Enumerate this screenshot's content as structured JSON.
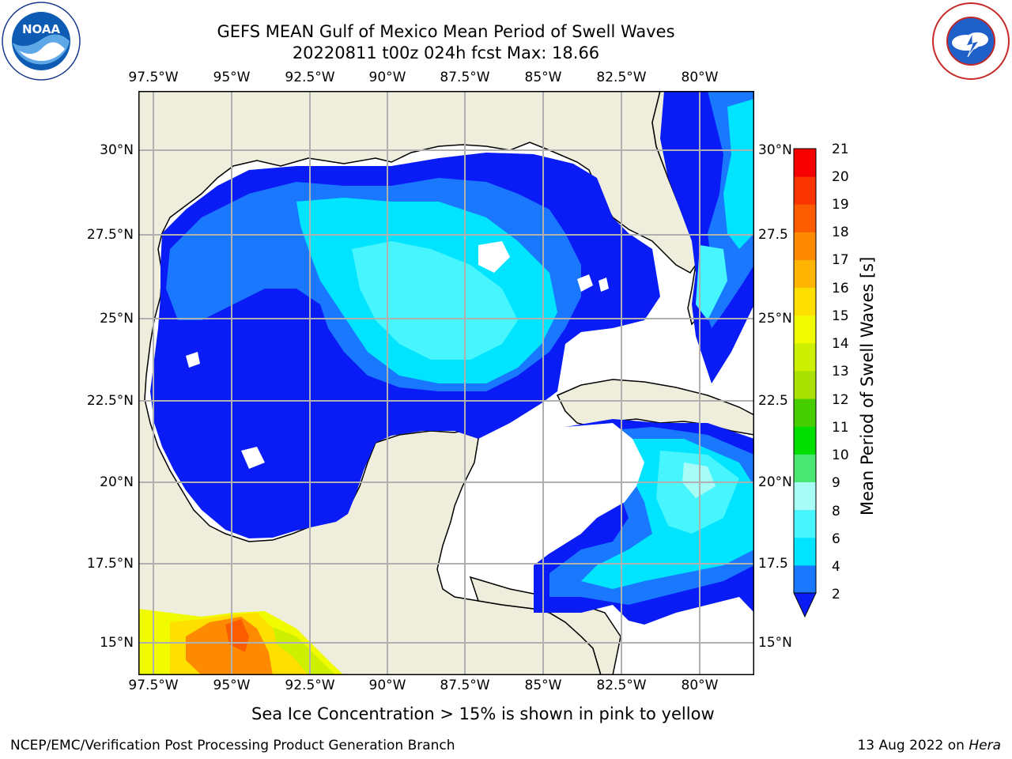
{
  "title": {
    "line1": "GEFS MEAN Gulf of Mexico Mean Period of Swell Waves",
    "line2": "20220811 t00z 024h fcst   Max: 18.66"
  },
  "logos": {
    "left": "NOAA",
    "left_ring_text": "NATIONAL OCEANIC AND ATMOSPHERIC ADMINISTRATION · U.S. DEPARTMENT OF COMMERCE",
    "right_ring_text": "NATIONAL WEATHER SERVICE"
  },
  "map": {
    "lon_ticks": [
      "97.5°W",
      "95°W",
      "92.5°W",
      "90°W",
      "87.5°W",
      "85°W",
      "82.5°W",
      "80°W"
    ],
    "lat_ticks_left": [
      "30°N",
      "27.5°N",
      "25°N",
      "22.5°N",
      "20°N",
      "17.5°N",
      "15°N"
    ],
    "lat_ticks_right": [
      "30°N",
      "27.5",
      "25°N",
      "22.5",
      "20°N",
      "17.5",
      "15°N"
    ],
    "grid": true,
    "colors": {
      "land": "#efeddc",
      "ocean_nodata": "#ffffff",
      "grid": "#b0b0b0",
      "coast": "#000000"
    }
  },
  "colorbar": {
    "label": "Mean Period of Swell Waves [s]",
    "ticks": [
      "2",
      "4",
      "6",
      "8",
      "9",
      "10",
      "11",
      "12",
      "13",
      "14",
      "15",
      "16",
      "17",
      "18",
      "19",
      "20",
      "21"
    ],
    "colors": [
      "#0a1cf5",
      "#1a78ff",
      "#00e4ff",
      "#47f5ff",
      "#a8fcf6",
      "#4ae873",
      "#00de00",
      "#47ce00",
      "#a9e000",
      "#ccf000",
      "#f1fb00",
      "#fee000",
      "#feb400",
      "#fd8a00",
      "#fc5c00",
      "#fc3400",
      "#f70000"
    ],
    "extend": "min"
  },
  "note": "Sea Ice Concentration > 15% is shown in pink to yellow",
  "footer": {
    "left": "NCEP/EMC/Verification Post Processing Product Generation Branch",
    "date": "13 Aug 2022 on",
    "machine": "Hera"
  }
}
